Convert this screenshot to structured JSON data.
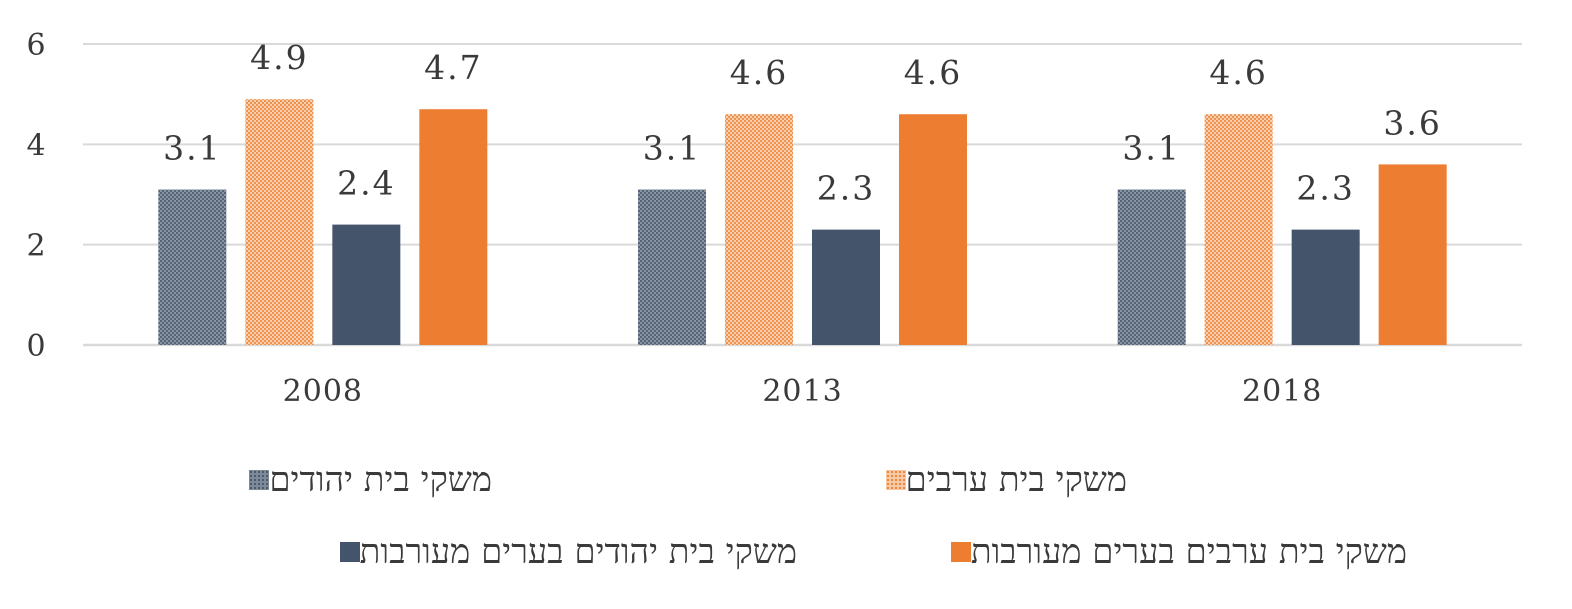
{
  "chart_data": {
    "type": "bar",
    "title": "",
    "xlabel": "",
    "ylabel": "",
    "categories": [
      "2008",
      "2013",
      "2018"
    ],
    "ylim": [
      0,
      6
    ],
    "yticks": [
      "0",
      "2",
      "4",
      "6"
    ],
    "grid": true,
    "legend_position": "bottom",
    "series": [
      {
        "name": "משקי בית יהודים",
        "values": [
          3.1,
          3.1,
          3.1
        ],
        "labels": [
          "3.1",
          "3.1",
          "3.1"
        ],
        "color": "#44546a",
        "pattern": "dotted"
      },
      {
        "name": "משקי בית ערבים",
        "values": [
          4.9,
          4.6,
          4.6
        ],
        "labels": [
          "4.9",
          "4.6",
          "4.6"
        ],
        "color": "#ed7d31",
        "pattern": "dotted"
      },
      {
        "name": "משקי בית יהודים בערים מעורבות",
        "values": [
          2.4,
          2.3,
          2.3
        ],
        "labels": [
          "2.4",
          "2.3",
          "2.3"
        ],
        "color": "#44546a",
        "pattern": "solid"
      },
      {
        "name": "משקי בית ערבים בערים מעורבות",
        "values": [
          4.7,
          4.6,
          3.6
        ],
        "labels": [
          "4.7",
          "4.6",
          "3.6"
        ],
        "color": "#ed7d31",
        "pattern": "solid"
      }
    ]
  }
}
